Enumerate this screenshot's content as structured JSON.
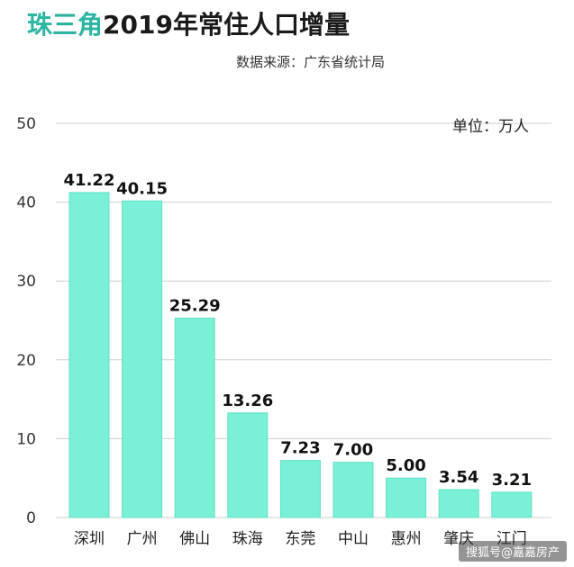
{
  "header": {
    "title_highlight": "珠三角",
    "title_rest": "2019年常住人口增量",
    "source": "数据来源：广东省统计局",
    "unit": "单位：万人"
  },
  "watermark": "搜狐号@嘉嘉房产",
  "colors": {
    "bar": "#7af0d6",
    "bar_edge": "#5fe0c3",
    "grid": "#cfcfcf",
    "accent": "#2bb5a0"
  },
  "chart_data": {
    "type": "bar",
    "categories": [
      "深圳",
      "广州",
      "佛山",
      "珠海",
      "东莞",
      "中山",
      "惠州",
      "肇庆",
      "江门"
    ],
    "values": [
      41.22,
      40.15,
      25.29,
      13.26,
      7.23,
      7.0,
      5.0,
      3.54,
      3.21
    ],
    "value_labels": [
      "41.22",
      "40.15",
      "25.29",
      "13.26",
      "7.23",
      "7.00",
      "5.00",
      "3.54",
      "3.21"
    ],
    "ylim": [
      0,
      50
    ],
    "yticks": [
      0,
      10,
      20,
      30,
      40,
      50
    ],
    "grid": true
  }
}
